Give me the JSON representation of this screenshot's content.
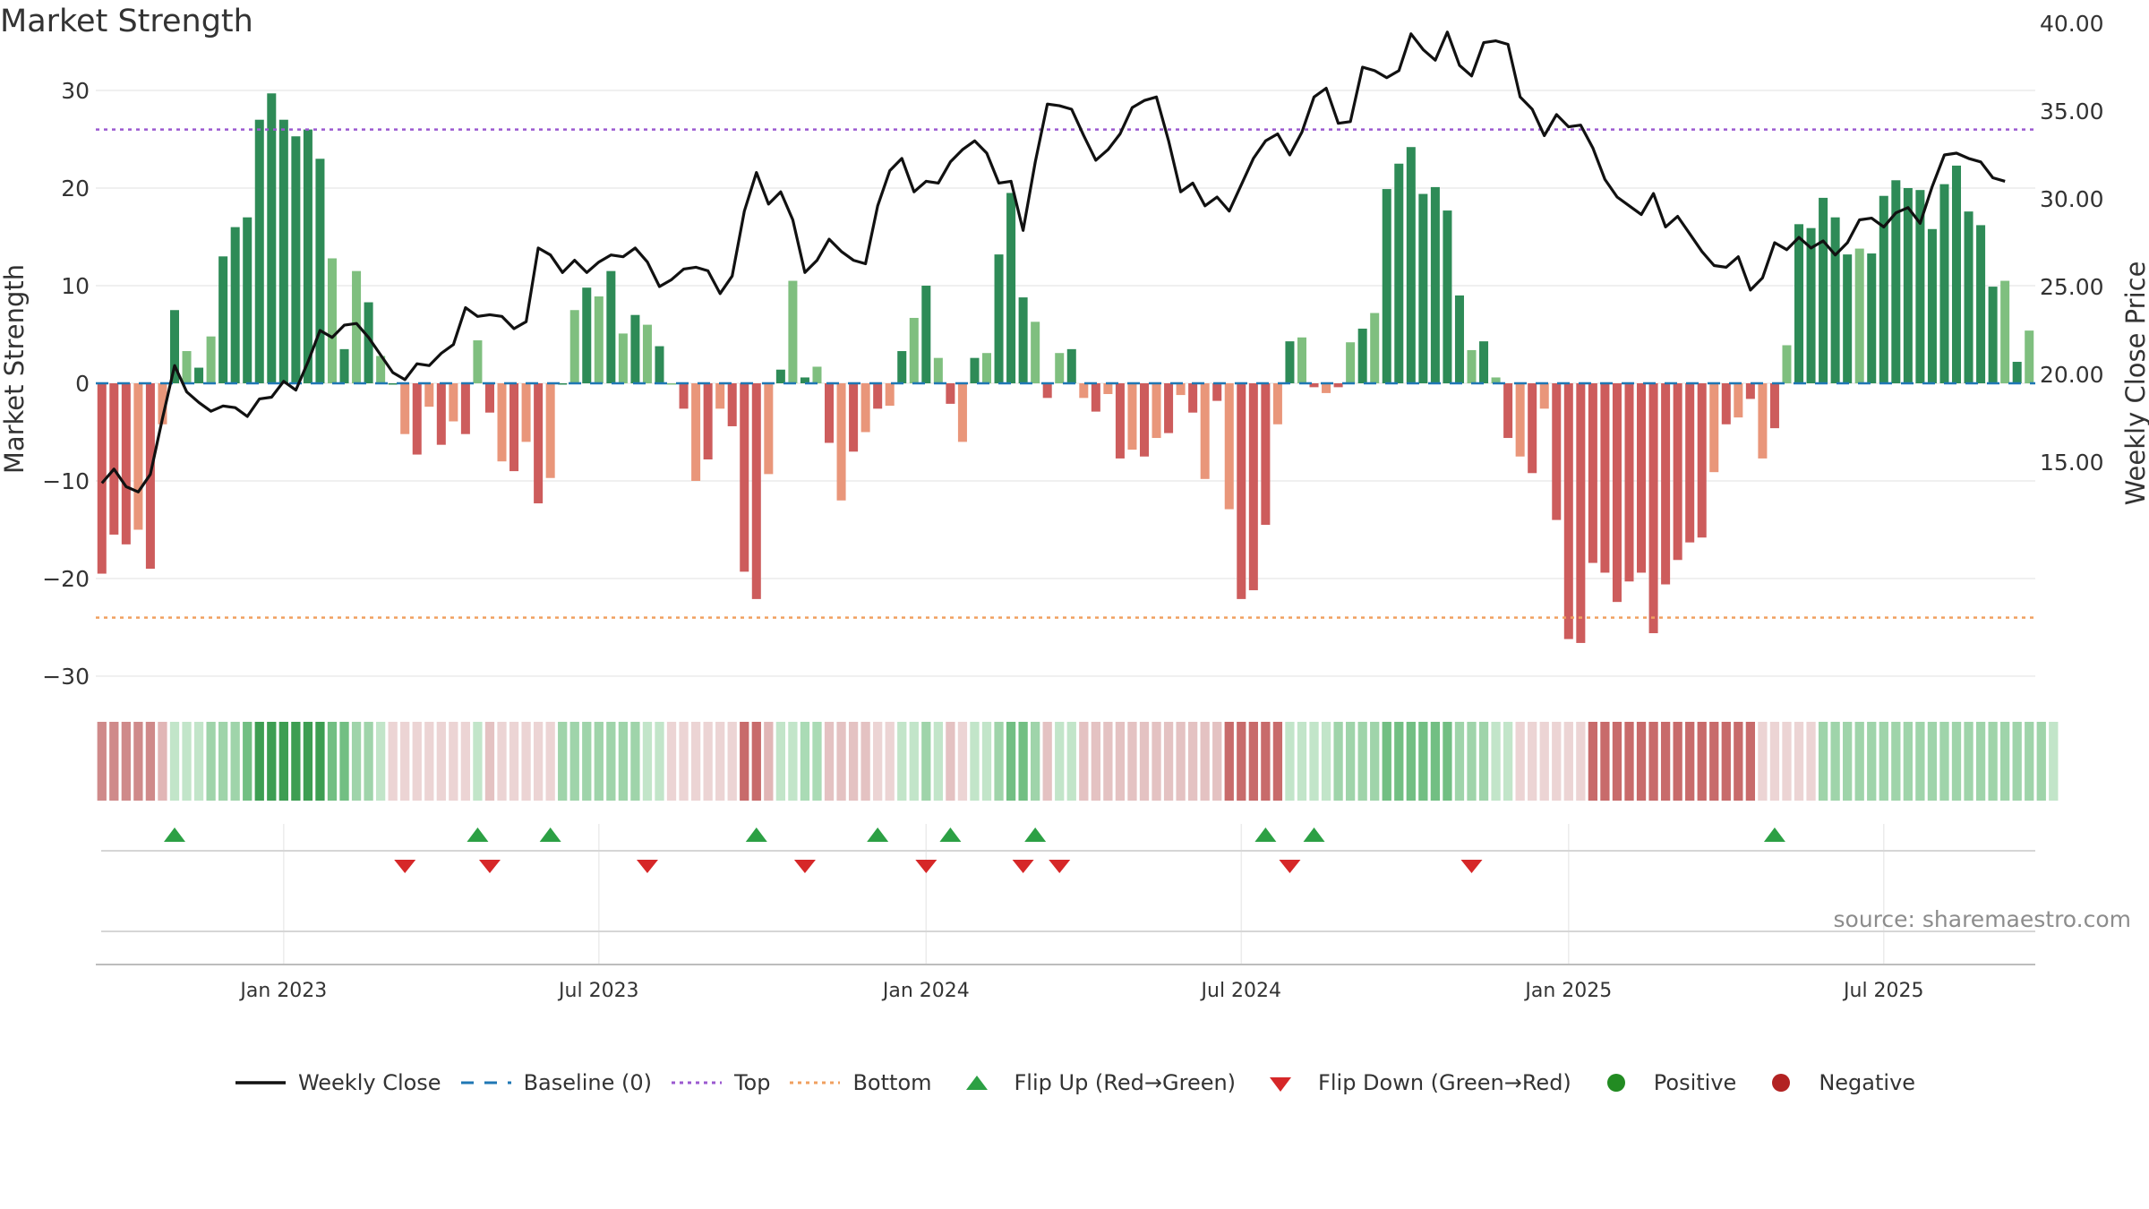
{
  "chart_data": {
    "type": "bar",
    "title": "Market Strength",
    "source": "source: sharemaestro.com",
    "y_left_label": "Market Strength",
    "y_right_label": "Weekly Close Price",
    "y_left_range": [
      -33,
      33
    ],
    "y_right_range": [
      12.0,
      42.0
    ],
    "y_left_ticks": [
      {
        "v": 30,
        "label": "30"
      },
      {
        "v": 20,
        "label": "20"
      },
      {
        "v": 10,
        "label": "10"
      },
      {
        "v": 0,
        "label": "0"
      },
      {
        "v": -10,
        "label": "−10"
      },
      {
        "v": -20,
        "label": "−20"
      },
      {
        "v": -30,
        "label": "−30"
      }
    ],
    "y_right_ticks": [
      {
        "v": 40,
        "label": "40.00"
      },
      {
        "v": 35,
        "label": "35.00"
      },
      {
        "v": 30,
        "label": "30.00"
      },
      {
        "v": 25,
        "label": "25.00"
      },
      {
        "v": 20,
        "label": "20.00"
      },
      {
        "v": 15,
        "label": "15.00"
      }
    ],
    "x_ticks": [
      {
        "week": 15,
        "label": "Jan 2023"
      },
      {
        "week": 41,
        "label": "Jul 2023"
      },
      {
        "week": 68,
        "label": "Jan 2024"
      },
      {
        "week": 94,
        "label": "Jul 2024"
      },
      {
        "week": 121,
        "label": "Jan 2025"
      },
      {
        "week": 147,
        "label": "Jul 2025"
      }
    ],
    "top_line": 26,
    "bottom_line": -24,
    "strength": [
      -19.5,
      -15.5,
      -16.5,
      -15,
      -19,
      -4.2,
      7.5,
      3.3,
      1.6,
      4.8,
      13,
      16,
      17,
      27,
      29.7,
      27,
      25.3,
      26,
      23,
      12.8,
      3.5,
      11.5,
      8.3,
      2.8,
      0,
      -5.2,
      -7.3,
      -2.4,
      -6.3,
      -3.9,
      -5.2,
      4.4,
      -3,
      -8,
      -9,
      -6,
      -12.3,
      -9.7,
      0,
      7.5,
      9.8,
      8.9,
      11.5,
      5.1,
      7,
      6,
      3.8,
      0,
      -2.6,
      -10,
      -7.8,
      -2.6,
      -4.4,
      -19.3,
      -22.1,
      -9.3,
      1.4,
      10.5,
      0.6,
      1.7,
      -6.1,
      -12,
      -7,
      -5,
      -2.6,
      -2.3,
      3.3,
      6.7,
      10,
      2.6,
      -2.1,
      -6,
      2.6,
      3.1,
      13.2,
      19.5,
      8.8,
      6.3,
      -1.5,
      3.1,
      3.5,
      -1.5,
      -2.9,
      -1.1,
      -7.7,
      -6.8,
      -7.5,
      -5.6,
      -5.1,
      -1.2,
      -3,
      -9.8,
      -1.8,
      -12.9,
      -22.1,
      -21.2,
      -14.5,
      -4.2,
      4.3,
      4.7,
      -0.4,
      -1,
      -0.4,
      4.2,
      5.6,
      7.2,
      19.9,
      22.5,
      24.2,
      19.4,
      20.1,
      17.7,
      9,
      3.4,
      4.3,
      0.6,
      -5.6,
      -7.5,
      -9.2,
      -2.6,
      -14,
      -26.2,
      -26.6,
      -18.4,
      -19.4,
      -22.4,
      -20.3,
      -19.4,
      -25.6,
      -20.6,
      -18.1,
      -16.3,
      -15.8,
      -9.1,
      -4.2,
      -3.5,
      -1.6,
      -7.7,
      -4.6,
      3.9,
      16.3,
      15.9,
      19,
      17,
      13.2,
      13.8,
      13.3,
      19.2,
      20.8,
      20,
      19.8,
      15.8,
      20.4,
      22.3,
      17.6,
      16.2,
      9.9,
      10.5,
      2.2,
      5.4
    ],
    "close": [
      13.8,
      14.6,
      13.6,
      13.3,
      14.3,
      17.5,
      20.5,
      19,
      18.4,
      17.9,
      18.2,
      18.1,
      17.6,
      18.6,
      18.7,
      19.6,
      19.1,
      20.7,
      22.5,
      22.1,
      22.8,
      22.9,
      22.1,
      21.1,
      20.1,
      19.7,
      20.6,
      20.5,
      21.2,
      21.7,
      23.8,
      23.3,
      23.4,
      23.3,
      22.6,
      23,
      27.2,
      26.8,
      25.8,
      26.5,
      25.8,
      26.4,
      26.8,
      26.7,
      27.2,
      26.4,
      25,
      25.4,
      26,
      26.1,
      25.9,
      24.6,
      25.6,
      29.3,
      31.5,
      29.7,
      30.4,
      28.8,
      25.8,
      26.5,
      27.7,
      27,
      26.5,
      26.3,
      29.6,
      31.6,
      32.3,
      30.4,
      31,
      30.9,
      32.1,
      32.8,
      33.3,
      32.6,
      30.9,
      31,
      28.2,
      32.1,
      35.4,
      35.3,
      35.1,
      33.6,
      32.2,
      32.8,
      33.7,
      35.2,
      35.6,
      35.8,
      33.3,
      30.4,
      30.9,
      29.6,
      30.1,
      29.3,
      30.8,
      32.3,
      33.3,
      33.7,
      32.5,
      33.8,
      35.8,
      36.3,
      34.3,
      34.4,
      37.5,
      37.3,
      36.9,
      37.3,
      39.4,
      38.5,
      37.9,
      39.5,
      37.6,
      37,
      38.9,
      39,
      38.8,
      35.8,
      35.1,
      33.6,
      34.8,
      34.1,
      34.2,
      32.9,
      31.1,
      30.1,
      29.6,
      29.1,
      30.3,
      28.4,
      29,
      28,
      27,
      26.2,
      26.1,
      26.7,
      24.8,
      25.5,
      27.5,
      27.1,
      27.8,
      27.2,
      27.6,
      26.8,
      27.5,
      28.8,
      28.9,
      28.4,
      29.2,
      29.5,
      28.6,
      30.7,
      32.5,
      32.6,
      32.3,
      32.1,
      31.2,
      31
    ],
    "regime_colors": [
      "#c86b6b",
      "#cf8a8a",
      "#d89f9f",
      "#e1b6b6",
      "#c2e5c9",
      "#9fd4aa",
      "#72bf83",
      "#3d9e52",
      "#ecd4d4",
      "#e4c2c2",
      "#aadbb5"
    ],
    "regime": [
      1,
      1,
      1,
      1,
      1,
      3,
      4,
      4,
      4,
      5,
      5,
      5,
      6,
      7,
      7,
      7,
      7,
      7,
      7,
      6,
      6,
      5,
      5,
      4,
      8,
      8,
      8,
      8,
      8,
      8,
      8,
      4,
      9,
      8,
      8,
      8,
      8,
      8,
      5,
      5,
      5,
      5,
      5,
      5,
      5,
      4,
      4,
      8,
      8,
      8,
      8,
      8,
      8,
      0,
      0,
      3,
      4,
      4,
      10,
      10,
      9,
      9,
      9,
      9,
      8,
      8,
      4,
      4,
      5,
      4,
      9,
      8,
      4,
      4,
      5,
      6,
      6,
      5,
      9,
      4,
      4,
      9,
      9,
      9,
      9,
      9,
      9,
      9,
      9,
      9,
      9,
      9,
      9,
      0,
      0,
      0,
      0,
      0,
      4,
      4,
      4,
      4,
      5,
      5,
      5,
      5,
      6,
      6,
      6,
      6,
      6,
      6,
      5,
      5,
      5,
      4,
      4,
      8,
      8,
      8,
      8,
      8,
      8,
      0,
      0,
      0,
      0,
      0,
      0,
      0,
      0,
      0,
      0,
      0,
      0,
      0,
      0,
      8,
      8,
      8,
      8,
      8,
      5,
      5,
      5,
      5,
      5,
      5,
      5,
      5,
      5,
      5,
      5,
      5,
      5,
      5,
      5,
      5,
      5,
      5,
      5,
      4
    ],
    "flip_up_weeks": [
      6,
      31,
      37,
      54,
      64,
      70,
      77,
      96,
      100,
      138
    ],
    "flip_down_weeks": [
      25,
      32,
      45,
      58,
      68,
      76,
      79,
      98,
      113
    ],
    "legend": [
      {
        "label": "Weekly Close",
        "icon": "line",
        "color": "#111111"
      },
      {
        "label": "Baseline (0)",
        "icon": "dash",
        "color": "#1f77b4"
      },
      {
        "label": "Top",
        "icon": "dot",
        "color": "#9b59d0"
      },
      {
        "label": "Bottom",
        "icon": "dot",
        "color": "#f0a060"
      },
      {
        "label": "Flip Up (Red→Green)",
        "icon": "triangle-up",
        "color": "#2ca044"
      },
      {
        "label": "Flip Down (Green→Red)",
        "icon": "triangle-down",
        "color": "#d62728"
      },
      {
        "label": "Positive",
        "icon": "circle",
        "color": "#228b22"
      },
      {
        "label": "Negative",
        "icon": "circle",
        "color": "#b22222"
      }
    ],
    "colors": {
      "positive_strong": "#2e8b57",
      "positive_light": "#7fbf7f",
      "negative_strong": "#cd5c5c",
      "negative_light": "#e9967a",
      "close_line": "#111111",
      "baseline": "#1f77b4",
      "top_line": "#9b59d0",
      "bottom_line": "#f0a060",
      "flip_up": "#2ca044",
      "flip_down": "#d62728"
    }
  }
}
